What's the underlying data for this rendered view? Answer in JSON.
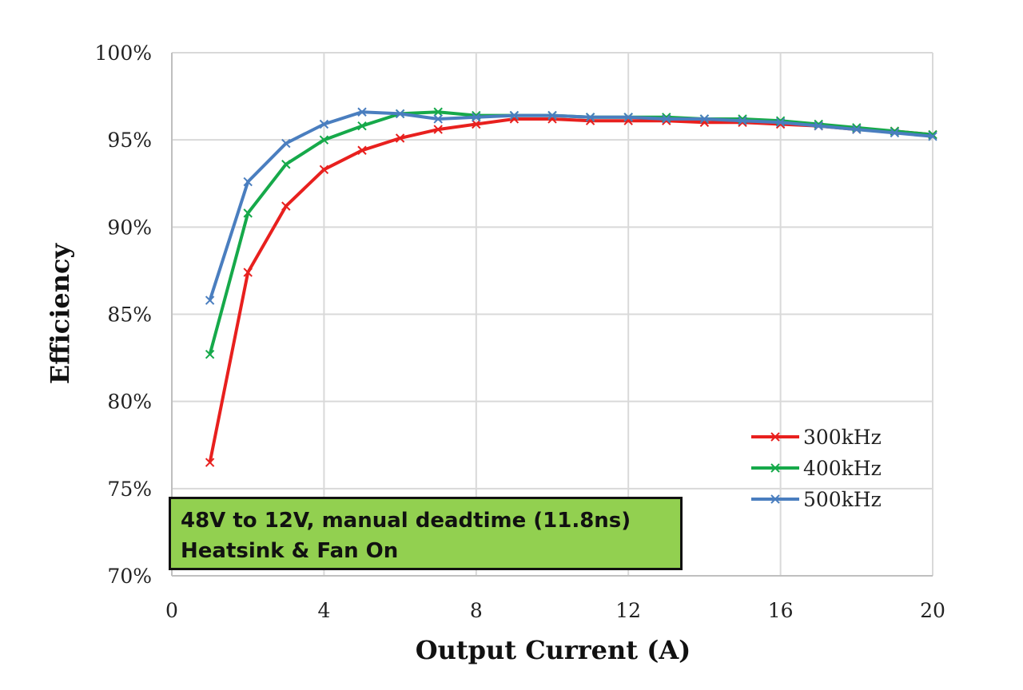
{
  "chart_data": {
    "type": "line",
    "title": "",
    "xlabel": "Output Current (A)",
    "ylabel": "Efficiency",
    "xlim": [
      0,
      20
    ],
    "ylim": [
      70,
      100
    ],
    "xticks": [
      0,
      4,
      8,
      12,
      16,
      20
    ],
    "yticks": [
      70,
      75,
      80,
      85,
      90,
      95,
      100
    ],
    "ytick_labels": [
      "70%",
      "75%",
      "80%",
      "85%",
      "90%",
      "95%",
      "100%"
    ],
    "grid": true,
    "legend_position": "bottom-right",
    "x": [
      1,
      2,
      3,
      4,
      5,
      6,
      7,
      8,
      9,
      10,
      11,
      12,
      13,
      14,
      15,
      16,
      17,
      18,
      19,
      20
    ],
    "series": [
      {
        "name": "300kHz",
        "color": "#e8201e",
        "values": [
          76.5,
          87.4,
          91.2,
          93.3,
          94.4,
          95.1,
          95.6,
          95.9,
          96.2,
          96.2,
          96.1,
          96.1,
          96.1,
          96.0,
          96.0,
          95.9,
          95.8,
          95.6,
          95.5,
          95.3
        ]
      },
      {
        "name": "400kHz",
        "color": "#16a94a",
        "values": [
          82.7,
          90.8,
          93.6,
          95.0,
          95.8,
          96.5,
          96.6,
          96.4,
          96.4,
          96.4,
          96.3,
          96.3,
          96.3,
          96.2,
          96.2,
          96.1,
          95.9,
          95.7,
          95.5,
          95.3
        ]
      },
      {
        "name": "500kHz",
        "color": "#4a7ebf",
        "values": [
          85.8,
          92.6,
          94.8,
          95.9,
          96.6,
          96.5,
          96.2,
          96.3,
          96.4,
          96.4,
          96.3,
          96.3,
          96.2,
          96.2,
          96.1,
          96.0,
          95.8,
          95.6,
          95.4,
          95.2
        ]
      }
    ],
    "annotation": {
      "line1": "48V to 12V, manual deadtime (11.8ns)",
      "line2": "Heatsink & Fan On",
      "background": "#92d050"
    }
  }
}
